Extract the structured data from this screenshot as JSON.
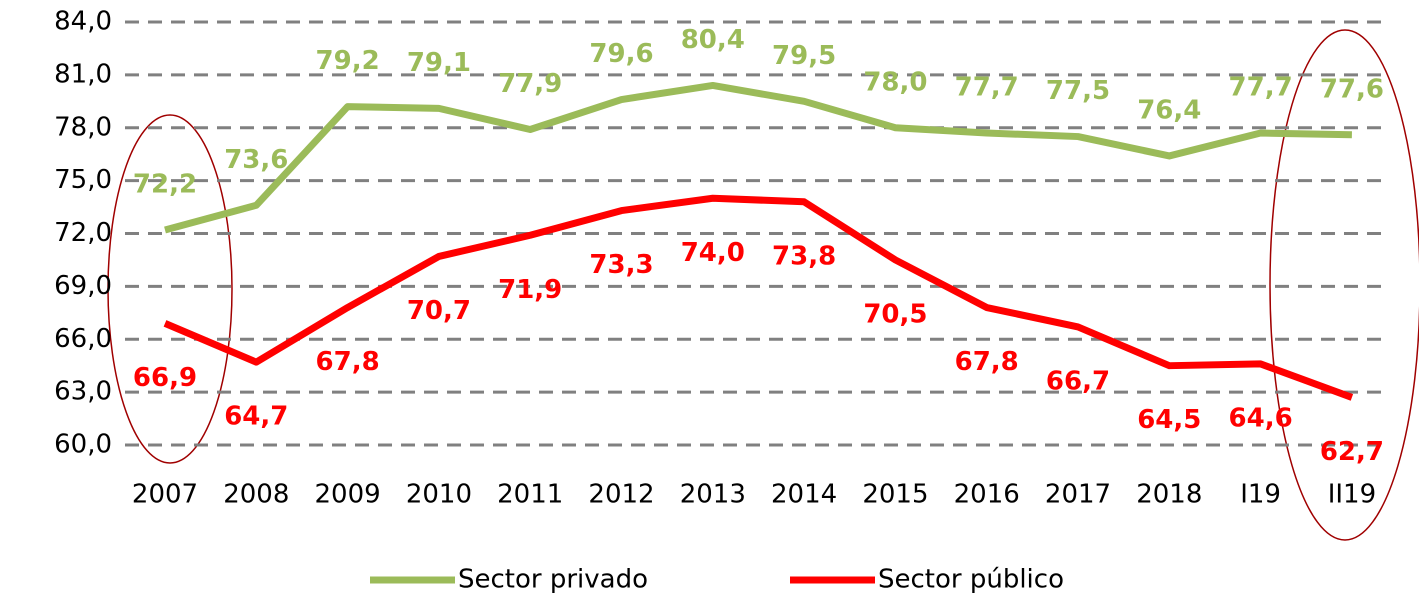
{
  "chart_data": {
    "type": "line",
    "categories": [
      "2007",
      "2008",
      "2009",
      "2010",
      "2011",
      "2012",
      "2013",
      "2014",
      "2015",
      "2016",
      "2017",
      "2018",
      "I19",
      "II19"
    ],
    "series": [
      {
        "name": "Sector privado",
        "color": "#9bbb59",
        "values": [
          72.2,
          73.6,
          79.2,
          79.1,
          77.9,
          79.6,
          80.4,
          79.5,
          78.0,
          77.7,
          77.5,
          76.4,
          77.7,
          77.6
        ],
        "value_labels": [
          "72,2",
          "73,6",
          "79,2",
          "79,1",
          "77,9",
          "79,6",
          "80,4",
          "79,5",
          "78,0",
          "77,7",
          "77,5",
          "76,4",
          "77,7",
          "77,6"
        ]
      },
      {
        "name": "Sector público",
        "color": "#ff0000",
        "values": [
          66.9,
          64.7,
          67.8,
          70.7,
          71.9,
          73.3,
          74.0,
          73.8,
          70.5,
          67.8,
          66.7,
          64.5,
          64.6,
          62.7
        ],
        "value_labels": [
          "66,9",
          "64,7",
          "67,8",
          "70,7",
          "71,9",
          "73,3",
          "74,0",
          "73,8",
          "70,5",
          "67,8",
          "66,7",
          "64,5",
          "64,6",
          "62,7"
        ]
      }
    ],
    "ylim": [
      60,
      84
    ],
    "yticks": [
      {
        "value": 60,
        "label": "60,0"
      },
      {
        "value": 63,
        "label": "63,0"
      },
      {
        "value": 66,
        "label": "66,0"
      },
      {
        "value": 69,
        "label": "69,0"
      },
      {
        "value": 72,
        "label": "72,0"
      },
      {
        "value": 75,
        "label": "75,0"
      },
      {
        "value": 78,
        "label": "78,0"
      },
      {
        "value": 81,
        "label": "81,0"
      },
      {
        "value": 84,
        "label": "84,0"
      }
    ],
    "grid": true,
    "legend": "bottom"
  }
}
